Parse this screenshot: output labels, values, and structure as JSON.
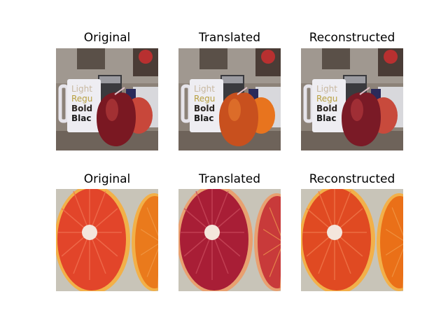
{
  "rows": [
    {
      "scene": "apple-and-mug",
      "panels": [
        {
          "title": "Original",
          "colors": {
            "fruit": "#7a1822",
            "fruit_hi": "#b43a3a",
            "side": "#c8473a"
          }
        },
        {
          "title": "Translated",
          "colors": {
            "fruit": "#c8501e",
            "fruit_hi": "#e4782e",
            "side": "#e8741e"
          }
        },
        {
          "title": "Reconstructed",
          "colors": {
            "fruit": "#7a1a26",
            "fruit_hi": "#b0383c",
            "side": "#c84a3c"
          }
        }
      ],
      "mug_text": [
        "Light",
        "Regu",
        "Bold",
        "Blac"
      ]
    },
    {
      "scene": "citrus-halves",
      "panels": [
        {
          "title": "Original",
          "colors": {
            "flesh": "#e2452a",
            "flesh_hi": "#f07050",
            "right": "#ea7a1c",
            "rind": "#f2b048"
          }
        },
        {
          "title": "Translated",
          "colors": {
            "flesh": "#a81e36",
            "flesh_hi": "#c8485a",
            "right": "#c83a3a",
            "rind": "#e8a070"
          }
        },
        {
          "title": "Reconstructed",
          "colors": {
            "flesh": "#e04a22",
            "flesh_hi": "#f0784a",
            "right": "#ea7018",
            "rind": "#f2b04a"
          }
        }
      ]
    }
  ]
}
